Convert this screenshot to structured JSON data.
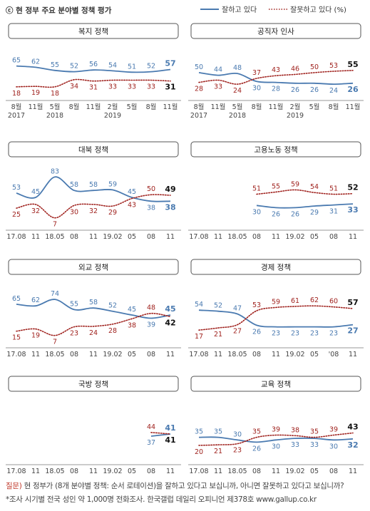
{
  "header": {
    "title": "ⓒ 현 정부 주요 분야별 정책 평가",
    "legend_good": "잘하고 있다",
    "legend_bad": "잘못하고 있다 (%)"
  },
  "colors": {
    "good": "#4a7ab0",
    "bad": "#a0231f",
    "panel_title_border": "#555555",
    "axis": "#9a9a9a"
  },
  "footer": {
    "q_label": "질문)",
    "question": " 현 정부가 (8개 분야별 정책: 순서 로테이션)을 잘하고 있다고 보십니까, 아니면 잘못하고 있다고 보십니까?",
    "source": "*조사 시기별 전국 성인 약 1,000명 전화조사. 한국갤럽 데일리 오피니언 제378호 www.gallup.co.kr"
  },
  "chart_data": [
    {
      "type": "line",
      "title": "복지 정책",
      "x": [
        "8월",
        "11월",
        "5월",
        "8월",
        "11월",
        "2월",
        "5월",
        "8월",
        "11월"
      ],
      "x_years": {
        "0": "2017",
        "2": "2018",
        "5": "2019"
      },
      "series": [
        {
          "name": "잘하고 있다",
          "values": [
            65,
            62,
            55,
            52,
            56,
            54,
            51,
            52,
            57
          ]
        },
        {
          "name": "잘못하고 있다",
          "values": [
            18,
            19,
            18,
            34,
            31,
            33,
            33,
            33,
            31
          ]
        }
      ]
    },
    {
      "type": "line",
      "title": "공직자 인사",
      "x": [
        "8월",
        "11월",
        "5월",
        "8월",
        "11월",
        "2월",
        "5월",
        "8월",
        "11월"
      ],
      "x_years": {
        "0": "2017",
        "2": "2018",
        "5": "2019"
      },
      "series": [
        {
          "name": "잘하고 있다",
          "values": [
            50,
            44,
            48,
            30,
            28,
            26,
            26,
            24,
            26
          ]
        },
        {
          "name": "잘못하고 있다",
          "values": [
            28,
            33,
            24,
            37,
            43,
            46,
            50,
            53,
            55
          ]
        }
      ]
    },
    {
      "type": "line",
      "title": "대북 정책",
      "x": [
        "17.08",
        "11",
        "18.05",
        "08",
        "11",
        "19.02",
        "05",
        "08",
        "11"
      ],
      "series": [
        {
          "name": "잘하고 있다",
          "values": [
            53,
            45,
            83,
            58,
            58,
            59,
            45,
            38,
            38
          ]
        },
        {
          "name": "잘못하고 있다",
          "values": [
            25,
            32,
            7,
            30,
            32,
            29,
            43,
            50,
            49
          ]
        }
      ]
    },
    {
      "type": "line",
      "title": "고용노동 정책",
      "x": [
        "17.08",
        "11",
        "18.05",
        "08",
        "11",
        "19.02",
        "05",
        "08",
        "11"
      ],
      "series": [
        {
          "name": "잘하고 있다",
          "values": [
            null,
            null,
            null,
            30,
            26,
            26,
            29,
            31,
            33
          ]
        },
        {
          "name": "잘못하고 있다",
          "values": [
            null,
            null,
            null,
            51,
            55,
            59,
            54,
            51,
            52
          ]
        }
      ]
    },
    {
      "type": "line",
      "title": "외교 정책",
      "x": [
        "17.08",
        "11",
        "18.05",
        "08",
        "11",
        "19.02",
        "05",
        "08",
        "11"
      ],
      "series": [
        {
          "name": "잘하고 있다",
          "values": [
            65,
            62,
            74,
            55,
            58,
            52,
            45,
            39,
            45
          ]
        },
        {
          "name": "잘못하고 있다",
          "values": [
            15,
            19,
            7,
            23,
            24,
            28,
            38,
            48,
            42
          ]
        }
      ]
    },
    {
      "type": "line",
      "title": "경제 정책",
      "x": [
        "17.08",
        "11",
        "18.05",
        "08",
        "11",
        "19.02",
        "05",
        "'08",
        "11"
      ],
      "series": [
        {
          "name": "잘하고 있다",
          "values": [
            54,
            52,
            47,
            26,
            23,
            23,
            23,
            23,
            27
          ]
        },
        {
          "name": "잘못하고 있다",
          "values": [
            17,
            21,
            27,
            53,
            59,
            61,
            62,
            60,
            57
          ]
        }
      ]
    },
    {
      "type": "line",
      "title": "국방 정책",
      "x": [
        "17.08",
        "11",
        "18.05",
        "08",
        "11",
        "19.02",
        "05",
        "08",
        "11"
      ],
      "series": [
        {
          "name": "잘하고 있다",
          "values": [
            null,
            null,
            null,
            null,
            null,
            null,
            null,
            37,
            41
          ]
        },
        {
          "name": "잘못하고 있다",
          "values": [
            null,
            null,
            null,
            null,
            null,
            null,
            null,
            44,
            41
          ]
        }
      ]
    },
    {
      "type": "line",
      "title": "교육 정책",
      "x": [
        "17.08",
        "11",
        "18.05",
        "08",
        "11",
        "19.02",
        "05",
        "08",
        "11"
      ],
      "series": [
        {
          "name": "잘하고 있다",
          "values": [
            35,
            35,
            30,
            26,
            30,
            33,
            33,
            30,
            32
          ]
        },
        {
          "name": "잘못하고 있다",
          "values": [
            20,
            21,
            23,
            35,
            39,
            38,
            35,
            39,
            43
          ]
        }
      ]
    }
  ]
}
